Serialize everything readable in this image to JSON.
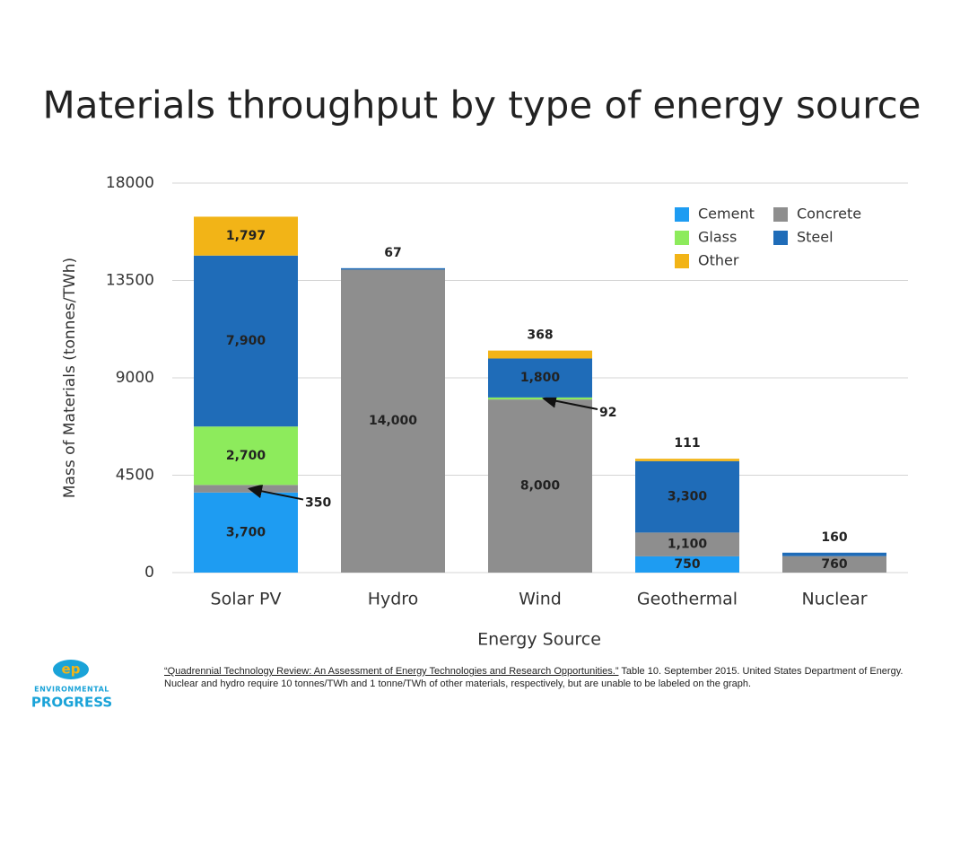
{
  "chart_data": {
    "type": "stacked_bar",
    "title": "Materials throughput by type of energy source",
    "x_label": "Energy Source",
    "y_label": "Mass of Materials (tonnes/TWh)",
    "categories": [
      "Solar PV",
      "Hydro",
      "Wind",
      "Geothermal",
      "Nuclear"
    ],
    "series": [
      {
        "name": "Cement",
        "color": "#1e9cf2",
        "values": [
          3700,
          null,
          null,
          750,
          null
        ],
        "value_labels": [
          "3,700",
          null,
          null,
          "750",
          null
        ]
      },
      {
        "name": "Concrete",
        "color": "#8e8e8e",
        "values": [
          350,
          14000,
          8000,
          1100,
          760
        ],
        "value_labels": [
          "350",
          "14,000",
          "8,000",
          "1,100",
          "760"
        ]
      },
      {
        "name": "Glass",
        "color": "#8deb5c",
        "values": [
          2700,
          null,
          92,
          null,
          null
        ],
        "value_labels": [
          "2,700",
          null,
          "92",
          null,
          null
        ]
      },
      {
        "name": "Steel",
        "color": "#1f6cb8",
        "values": [
          7900,
          67,
          1800,
          3300,
          160
        ],
        "value_labels": [
          "7,900",
          "67",
          "1,800",
          "3,300",
          "160"
        ]
      },
      {
        "name": "Other",
        "color": "#f2b417",
        "values": [
          1797,
          null,
          368,
          111,
          null
        ],
        "value_labels": [
          "1,797",
          null,
          "368",
          "111",
          null
        ]
      }
    ],
    "ylim": [
      0,
      18000
    ],
    "yticks": [
      0,
      4500,
      9000,
      13500,
      18000
    ],
    "grid": true,
    "legend": "top-right"
  },
  "footnote": {
    "source": "“Quadrennial Technology Review: An Assessment of Energy Technologies and Research Opportunities.”",
    "text": " Table 10. September 2015. United States Department of Energy. Nuclear and hydro require 10 tonnes/TWh and 1 tonne/TWh of other materials, respectively, but are unable to be labeled on the graph."
  },
  "logo": {
    "mark": "ep",
    "line1": "ENVIRONMENTAL",
    "line2": "PROGRESS"
  }
}
